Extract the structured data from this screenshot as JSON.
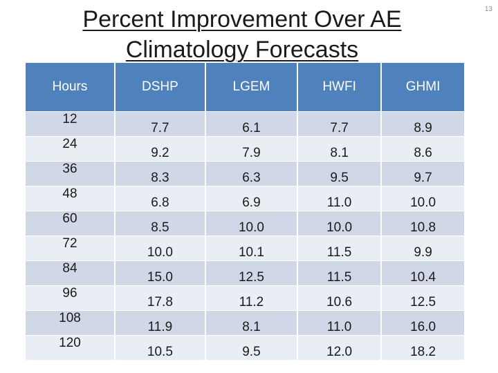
{
  "slide": {
    "title_line1": "Percent Improvement Over AE",
    "title_line2": "Climatology Forecasts",
    "number": "13"
  },
  "table": {
    "headers": [
      "Hours",
      "DSHP",
      "LGEM",
      "HWFI",
      "GHMI"
    ],
    "rows": [
      [
        "12",
        "7.7",
        "6.1",
        "7.7",
        "8.9"
      ],
      [
        "24",
        "9.2",
        "7.9",
        "8.1",
        "8.6"
      ],
      [
        "36",
        "8.3",
        "6.3",
        "9.5",
        "9.7"
      ],
      [
        "48",
        "6.8",
        "6.9",
        "11.0",
        "10.0"
      ],
      [
        "60",
        "8.5",
        "10.0",
        "10.0",
        "10.8"
      ],
      [
        "72",
        "10.0",
        "10.1",
        "11.5",
        "9.9"
      ],
      [
        "84",
        "15.0",
        "12.5",
        "11.5",
        "10.4"
      ],
      [
        "96",
        "17.8",
        "11.2",
        "10.6",
        "12.5"
      ],
      [
        "108",
        "11.9",
        "8.1",
        "11.0",
        "16.0"
      ],
      [
        "120",
        "10.5",
        "9.5",
        "12.0",
        "18.2"
      ]
    ]
  },
  "colors": {
    "header_bg": "#4f81bd",
    "row_odd_bg": "#d0d8e8",
    "row_even_bg": "#e9edf4"
  }
}
